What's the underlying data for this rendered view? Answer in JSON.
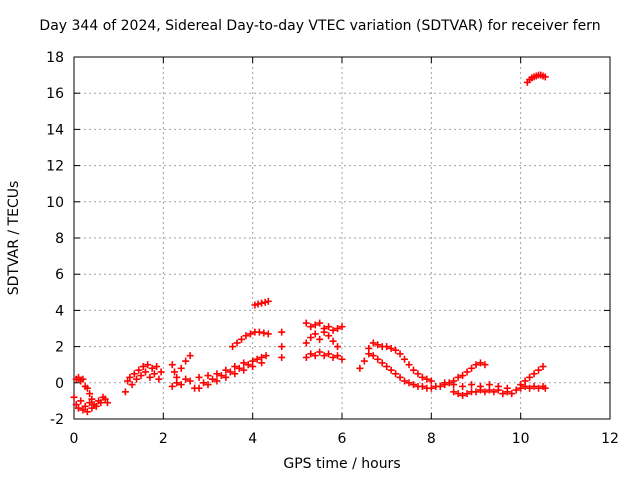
{
  "chart_data": {
    "type": "scatter",
    "title": "Day 344 of 2024, Sidereal Day-to-day VTEC variation (SDTVAR) for receiver fern",
    "xlabel": "GPS time / hours",
    "ylabel": "SDTVAR / TECUs",
    "xlim": [
      0,
      12
    ],
    "ylim": [
      -2,
      18
    ],
    "xticks": [
      0,
      2,
      4,
      6,
      8,
      10,
      12
    ],
    "yticks": [
      -2,
      0,
      2,
      4,
      6,
      8,
      10,
      12,
      14,
      16,
      18
    ],
    "grid": true,
    "marker": "plus",
    "color": "#ff0000",
    "series": [
      {
        "name": "SDTVAR",
        "points": [
          [
            0.0,
            -0.8
          ],
          [
            0.05,
            -1.2
          ],
          [
            0.1,
            -1.4
          ],
          [
            0.15,
            -1.0
          ],
          [
            0.2,
            -1.5
          ],
          [
            0.25,
            -1.3
          ],
          [
            0.3,
            -1.6
          ],
          [
            0.35,
            -1.1
          ],
          [
            0.4,
            -1.4
          ],
          [
            0.45,
            -1.2
          ],
          [
            0.5,
            -1.3
          ],
          [
            0.55,
            -1.0
          ],
          [
            0.6,
            -1.1
          ],
          [
            0.65,
            -0.8
          ],
          [
            0.7,
            -0.9
          ],
          [
            0.75,
            -1.1
          ],
          [
            0.05,
            0.2
          ],
          [
            0.1,
            0.3
          ],
          [
            0.15,
            0.1
          ],
          [
            0.2,
            0.2
          ],
          [
            0.25,
            -0.2
          ],
          [
            0.3,
            -0.3
          ],
          [
            0.35,
            -0.6
          ],
          [
            0.4,
            -0.9
          ],
          [
            1.15,
            -0.5
          ],
          [
            1.2,
            0.1
          ],
          [
            1.25,
            0.3
          ],
          [
            1.3,
            -0.1
          ],
          [
            1.35,
            0.5
          ],
          [
            1.4,
            0.2
          ],
          [
            1.45,
            0.7
          ],
          [
            1.5,
            0.4
          ],
          [
            1.55,
            0.9
          ],
          [
            1.6,
            0.6
          ],
          [
            1.65,
            1.0
          ],
          [
            1.7,
            0.3
          ],
          [
            1.75,
            0.8
          ],
          [
            1.8,
            0.5
          ],
          [
            1.85,
            0.9
          ],
          [
            1.9,
            0.2
          ],
          [
            1.95,
            0.6
          ],
          [
            2.2,
            1.0
          ],
          [
            2.25,
            0.6
          ],
          [
            2.3,
            0.3
          ],
          [
            2.4,
            0.8
          ],
          [
            2.5,
            1.2
          ],
          [
            2.6,
            1.5
          ],
          [
            2.2,
            -0.2
          ],
          [
            2.3,
            0.0
          ],
          [
            2.4,
            -0.1
          ],
          [
            2.5,
            0.2
          ],
          [
            2.6,
            0.1
          ],
          [
            2.7,
            -0.3
          ],
          [
            2.8,
            0.3
          ],
          [
            2.9,
            0.0
          ],
          [
            3.0,
            0.4
          ],
          [
            3.1,
            0.2
          ],
          [
            3.2,
            0.5
          ],
          [
            3.3,
            0.4
          ],
          [
            3.4,
            0.7
          ],
          [
            3.5,
            0.6
          ],
          [
            3.6,
            0.9
          ],
          [
            3.7,
            0.8
          ],
          [
            3.8,
            1.1
          ],
          [
            3.9,
            1.0
          ],
          [
            4.0,
            1.2
          ],
          [
            4.1,
            1.3
          ],
          [
            4.2,
            1.4
          ],
          [
            4.3,
            1.5
          ],
          [
            2.8,
            -0.3
          ],
          [
            3.0,
            -0.1
          ],
          [
            3.2,
            0.1
          ],
          [
            3.4,
            0.3
          ],
          [
            3.6,
            0.5
          ],
          [
            3.8,
            0.7
          ],
          [
            4.0,
            0.9
          ],
          [
            4.2,
            1.1
          ],
          [
            3.55,
            2.0
          ],
          [
            3.65,
            2.2
          ],
          [
            3.75,
            2.4
          ],
          [
            3.85,
            2.6
          ],
          [
            3.95,
            2.7
          ],
          [
            4.05,
            2.8
          ],
          [
            4.15,
            2.8
          ],
          [
            4.25,
            2.75
          ],
          [
            4.35,
            2.7
          ],
          [
            4.05,
            4.3
          ],
          [
            4.12,
            4.35
          ],
          [
            4.2,
            4.4
          ],
          [
            4.28,
            4.45
          ],
          [
            4.35,
            4.5
          ],
          [
            4.65,
            1.4
          ],
          [
            4.65,
            2.0
          ],
          [
            4.65,
            2.8
          ],
          [
            5.2,
            1.4
          ],
          [
            5.3,
            1.6
          ],
          [
            5.4,
            1.5
          ],
          [
            5.5,
            1.7
          ],
          [
            5.6,
            1.5
          ],
          [
            5.7,
            1.6
          ],
          [
            5.8,
            1.4
          ],
          [
            5.9,
            1.5
          ],
          [
            6.0,
            1.3
          ],
          [
            5.2,
            2.2
          ],
          [
            5.3,
            2.5
          ],
          [
            5.4,
            2.7
          ],
          [
            5.5,
            2.4
          ],
          [
            5.6,
            2.8
          ],
          [
            5.7,
            2.6
          ],
          [
            5.8,
            2.3
          ],
          [
            5.9,
            2.0
          ],
          [
            5.2,
            3.3
          ],
          [
            5.3,
            3.1
          ],
          [
            5.4,
            3.2
          ],
          [
            5.5,
            3.3
          ],
          [
            5.6,
            3.0
          ],
          [
            5.7,
            3.1
          ],
          [
            5.8,
            2.9
          ],
          [
            5.9,
            3.0
          ],
          [
            6.0,
            3.1
          ],
          [
            6.4,
            0.8
          ],
          [
            6.5,
            1.2
          ],
          [
            6.6,
            1.9
          ],
          [
            6.7,
            2.2
          ],
          [
            6.8,
            2.1
          ],
          [
            6.9,
            2.0
          ],
          [
            7.0,
            2.0
          ],
          [
            7.1,
            1.9
          ],
          [
            7.2,
            1.8
          ],
          [
            7.3,
            1.6
          ],
          [
            7.4,
            1.3
          ],
          [
            7.5,
            1.0
          ],
          [
            7.6,
            0.7
          ],
          [
            7.7,
            0.5
          ],
          [
            7.8,
            0.3
          ],
          [
            7.9,
            0.2
          ],
          [
            8.0,
            0.1
          ],
          [
            6.6,
            1.6
          ],
          [
            6.7,
            1.5
          ],
          [
            6.8,
            1.3
          ],
          [
            6.9,
            1.1
          ],
          [
            7.0,
            0.9
          ],
          [
            7.1,
            0.7
          ],
          [
            7.2,
            0.5
          ],
          [
            7.3,
            0.3
          ],
          [
            7.4,
            0.1
          ],
          [
            7.5,
            0.0
          ],
          [
            7.6,
            -0.1
          ],
          [
            7.7,
            -0.2
          ],
          [
            7.8,
            -0.2
          ],
          [
            7.9,
            -0.3
          ],
          [
            8.0,
            -0.3
          ],
          [
            8.1,
            -0.2
          ],
          [
            8.2,
            -0.2
          ],
          [
            8.3,
            -0.1
          ],
          [
            8.4,
            0.0
          ],
          [
            8.5,
            0.1
          ],
          [
            8.6,
            0.3
          ],
          [
            8.7,
            0.4
          ],
          [
            8.8,
            0.6
          ],
          [
            8.9,
            0.8
          ],
          [
            9.0,
            1.0
          ],
          [
            9.1,
            1.1
          ],
          [
            9.2,
            1.0
          ],
          [
            8.5,
            -0.5
          ],
          [
            8.6,
            -0.6
          ],
          [
            8.7,
            -0.7
          ],
          [
            8.8,
            -0.6
          ],
          [
            8.9,
            -0.5
          ],
          [
            9.0,
            -0.5
          ],
          [
            9.1,
            -0.4
          ],
          [
            9.2,
            -0.5
          ],
          [
            9.3,
            -0.4
          ],
          [
            9.4,
            -0.5
          ],
          [
            9.5,
            -0.4
          ],
          [
            9.6,
            -0.6
          ],
          [
            9.7,
            -0.5
          ],
          [
            9.8,
            -0.6
          ],
          [
            9.9,
            -0.4
          ],
          [
            8.3,
            0.0
          ],
          [
            8.5,
            -0.1
          ],
          [
            8.7,
            -0.2
          ],
          [
            8.9,
            -0.1
          ],
          [
            9.1,
            -0.2
          ],
          [
            9.3,
            -0.1
          ],
          [
            9.5,
            -0.2
          ],
          [
            9.7,
            -0.3
          ],
          [
            10.0,
            -0.1
          ],
          [
            10.1,
            0.1
          ],
          [
            10.2,
            0.3
          ],
          [
            10.3,
            0.5
          ],
          [
            10.4,
            0.7
          ],
          [
            10.5,
            0.9
          ],
          [
            10.0,
            -0.3
          ],
          [
            10.1,
            -0.2
          ],
          [
            10.2,
            -0.3
          ],
          [
            10.3,
            -0.2
          ],
          [
            10.4,
            -0.3
          ],
          [
            10.5,
            -0.2
          ],
          [
            10.55,
            -0.3
          ],
          [
            10.15,
            16.6
          ],
          [
            10.2,
            16.75
          ],
          [
            10.25,
            16.85
          ],
          [
            10.3,
            16.9
          ],
          [
            10.35,
            16.95
          ],
          [
            10.4,
            17.0
          ],
          [
            10.45,
            17.0
          ],
          [
            10.5,
            16.95
          ],
          [
            10.55,
            16.9
          ]
        ]
      }
    ]
  }
}
